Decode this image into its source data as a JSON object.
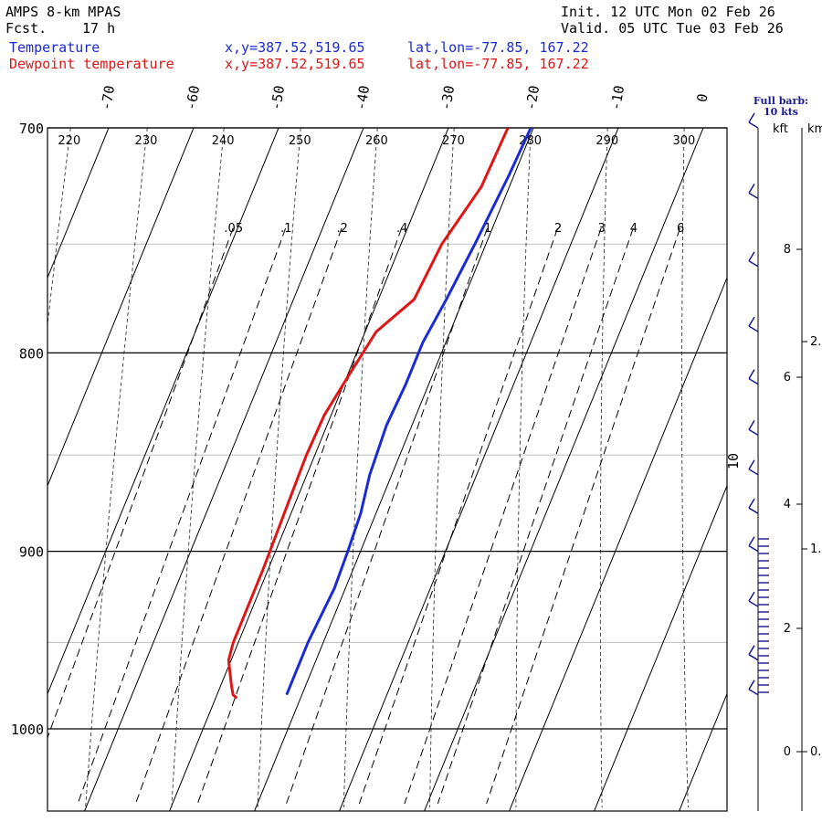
{
  "header": {
    "model": "AMPS 8-km MPAS",
    "forecast_label": "Fcst.",
    "forecast_hours": "17 h",
    "init": "Init. 12 UTC Mon 02 Feb 26",
    "valid": "Valid. 05 UTC Tue 03 Feb 26",
    "series": [
      {
        "label": "Temperature",
        "xy": "x,y=387.52,519.65",
        "latlon": "lat,lon=-77.85, 167.22",
        "color": "#1a2bd6"
      },
      {
        "label": "Dewpoint temperature",
        "xy": "x,y=387.52,519.65",
        "latlon": "lat,lon=-77.85, 167.22",
        "color": "#e01515"
      }
    ]
  },
  "barb_panel": {
    "title_line1": "Full barb:",
    "title_line2": "10 kts",
    "kft_label": "kft",
    "km_label": "km",
    "kft_ticks": [
      "8",
      "6",
      "4",
      "2",
      "0"
    ],
    "km_ticks": [
      "2.",
      "1.",
      "0."
    ],
    "speed_label": "10"
  },
  "chart_data": {
    "type": "line",
    "chart_kind": "skew-T log-P sounding",
    "pressure_axis": {
      "ticks": [
        700,
        800,
        900,
        1000
      ],
      "range_hPa": [
        700,
        1050
      ],
      "scale": "log"
    },
    "temperature_axis": {
      "ticks": [
        -70,
        -60,
        -50,
        -40,
        -30,
        -20,
        -10,
        0
      ],
      "unit": "C",
      "skewed": true
    },
    "dry_adiabat_labels": [
      220,
      230,
      240,
      250,
      260,
      270,
      280,
      290,
      300
    ],
    "mixing_ratio_labels": [
      ".05",
      ".1",
      ".2",
      ".4",
      "1",
      "2",
      "3",
      "4",
      "6"
    ],
    "series": [
      {
        "name": "Temperature",
        "color": "#1a2bd6",
        "points": [
          {
            "p": 700,
            "t": -20.3
          },
          {
            "p": 720,
            "t": -20.6
          },
          {
            "p": 750,
            "t": -21.3
          },
          {
            "p": 775,
            "t": -22.0
          },
          {
            "p": 795,
            "t": -22.7
          },
          {
            "p": 815,
            "t": -22.7
          },
          {
            "p": 835,
            "t": -23.0
          },
          {
            "p": 860,
            "t": -22.6
          },
          {
            "p": 880,
            "t": -21.8
          },
          {
            "p": 900,
            "t": -21.5
          },
          {
            "p": 920,
            "t": -21.3
          },
          {
            "p": 950,
            "t": -21.8
          },
          {
            "p": 980,
            "t": -21.8
          }
        ]
      },
      {
        "name": "Dewpoint temperature",
        "color": "#e01515",
        "points": [
          {
            "p": 700,
            "t": -23.0
          },
          {
            "p": 725,
            "t": -23.3
          },
          {
            "p": 750,
            "t": -25.2
          },
          {
            "p": 775,
            "t": -25.8
          },
          {
            "p": 790,
            "t": -28.7
          },
          {
            "p": 810,
            "t": -29.8
          },
          {
            "p": 830,
            "t": -30.8
          },
          {
            "p": 850,
            "t": -31.0
          },
          {
            "p": 880,
            "t": -30.8
          },
          {
            "p": 910,
            "t": -30.6
          },
          {
            "p": 950,
            "t": -30.6
          },
          {
            "p": 960,
            "t": -30.3
          },
          {
            "p": 975,
            "t": -28.7
          },
          {
            "p": 980,
            "t": -28.1
          },
          {
            "p": 982,
            "t": -27.5
          }
        ]
      }
    ],
    "wind_barbs": [
      {
        "p": 700,
        "speed_kts": 10
      },
      {
        "p": 730,
        "speed_kts": 10
      },
      {
        "p": 760,
        "speed_kts": 10
      },
      {
        "p": 790,
        "speed_kts": 10
      },
      {
        "p": 815,
        "speed_kts": 10
      },
      {
        "p": 840,
        "speed_kts": 10
      },
      {
        "p": 860,
        "speed_kts": 10
      },
      {
        "p": 880,
        "speed_kts": 10
      },
      {
        "p": 900,
        "speed_kts": 10
      },
      {
        "p": 930,
        "speed_kts": 10
      },
      {
        "p": 960,
        "speed_kts": 10
      },
      {
        "p": 980,
        "speed_kts": 10
      }
    ],
    "grid": true
  }
}
